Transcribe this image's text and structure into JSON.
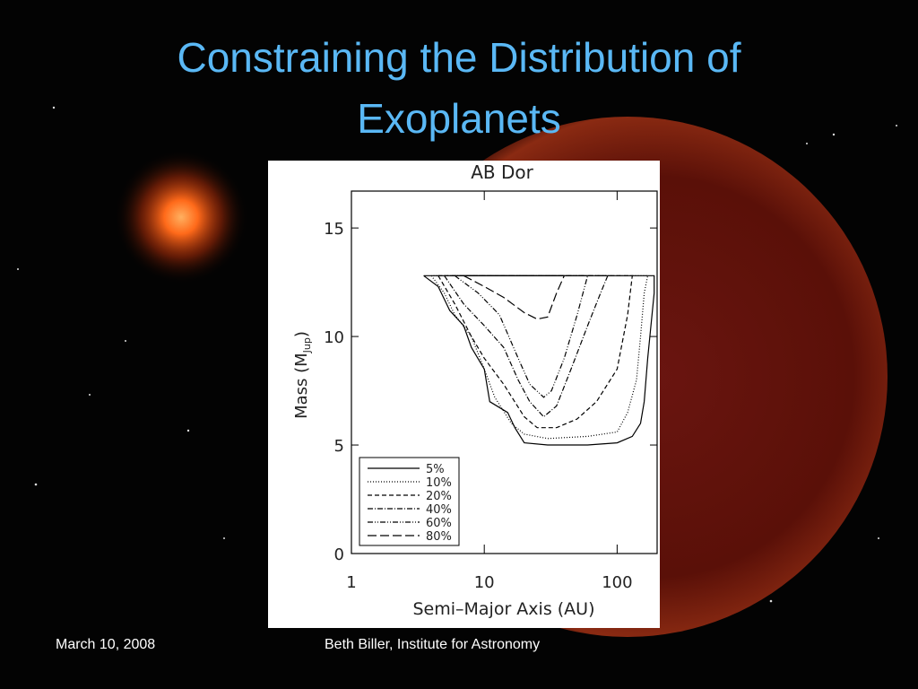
{
  "header": {
    "title_lines": [
      "Constraining the Distribution of",
      "Exoplanets"
    ]
  },
  "footer": {
    "date": "March 10, 2008",
    "author": "Beth Biller, Institute for Astronomy"
  },
  "chart_data": {
    "type": "line",
    "title": "AB Dor",
    "x_label": "Semi–Major Axis (AU)",
    "y_label": {
      "text": "Mass (M",
      "sub": "Jup",
      "close": ")"
    },
    "log_x": true,
    "xlim": [
      1,
      200
    ],
    "ylim": [
      0,
      16.7
    ],
    "xticks": [
      1,
      10,
      100
    ],
    "yticks": [
      0,
      5,
      10,
      15
    ],
    "legend": "lower left",
    "series": [
      {
        "name": "5%",
        "color": "#000000",
        "dash": "solid",
        "x": [
          3.5,
          4.5,
          5.5,
          7,
          8,
          10,
          11,
          15,
          17,
          20,
          30,
          60,
          100,
          130,
          150,
          160,
          170,
          190,
          190,
          3.5
        ],
        "values": [
          12.8,
          12.3,
          11.2,
          10.5,
          9.5,
          8.5,
          7,
          6.5,
          5.8,
          5.1,
          5,
          5,
          5.1,
          5.4,
          6,
          7,
          9,
          12,
          12.8,
          12.8
        ]
      },
      {
        "name": "10%",
        "color": "#000000",
        "dash": "dotted",
        "x": [
          4,
          5,
          6,
          8,
          10,
          12,
          16,
          20,
          30,
          60,
          100,
          120,
          140,
          150,
          160,
          170,
          4
        ],
        "values": [
          12.8,
          12,
          11,
          10,
          8.5,
          7.2,
          6,
          5.5,
          5.3,
          5.4,
          5.6,
          6.5,
          8,
          10,
          12,
          12.8,
          12.8
        ]
      },
      {
        "name": "20%",
        "color": "#000000",
        "dash": "dashed",
        "x": [
          4.5,
          6,
          8,
          10,
          14,
          20,
          25,
          35,
          50,
          70,
          100,
          120,
          130,
          4.5
        ],
        "values": [
          12.8,
          11.5,
          10,
          9,
          7.8,
          6.3,
          5.8,
          5.8,
          6.2,
          7,
          8.5,
          11,
          12.8,
          12.8
        ]
      },
      {
        "name": "40%",
        "color": "#000000",
        "dash": "dashdot",
        "x": [
          5,
          7,
          10,
          14,
          18,
          22,
          28,
          35,
          45,
          60,
          75,
          85,
          5
        ],
        "values": [
          12.8,
          11.5,
          10.5,
          9.5,
          8,
          7,
          6.3,
          6.8,
          8.5,
          10.5,
          12,
          12.8,
          12.8
        ]
      },
      {
        "name": "60%",
        "color": "#000000",
        "dash": "dashdotdot",
        "x": [
          6,
          9,
          13,
          18,
          22,
          28,
          32,
          40,
          50,
          60,
          6
        ],
        "values": [
          12.8,
          12,
          11,
          9,
          7.8,
          7.2,
          7.5,
          9,
          11,
          12.8,
          12.8
        ]
      },
      {
        "name": "80%",
        "color": "#000000",
        "dash": "longdash",
        "x": [
          7,
          10,
          14,
          20,
          25,
          30,
          35,
          40,
          7
        ],
        "values": [
          12.8,
          12.3,
          11.8,
          11.1,
          10.8,
          10.9,
          12,
          12.8,
          12.8
        ]
      }
    ]
  }
}
